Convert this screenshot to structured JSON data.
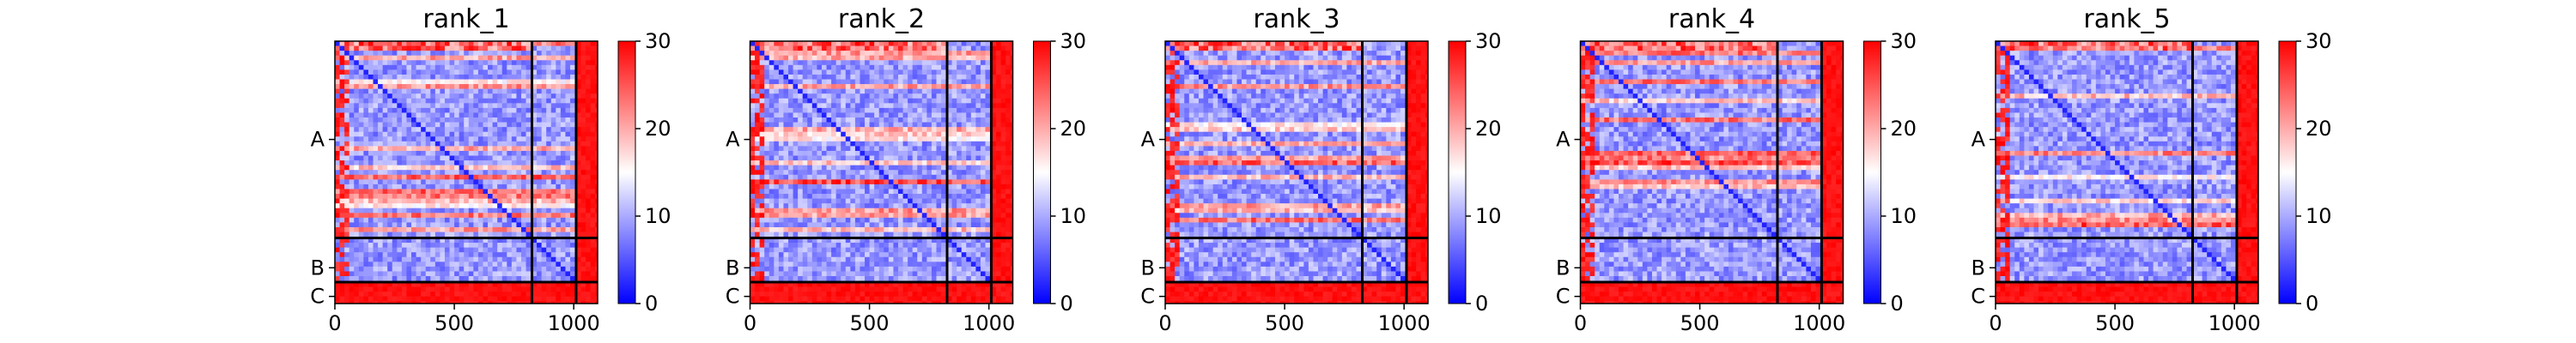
{
  "chart_data": {
    "type": "heatmap",
    "colormap": {
      "name": "bwr",
      "low": "#0000ff",
      "mid": "#ffffff",
      "high": "#ff0000"
    },
    "panels": [
      {
        "title": "rank_1"
      },
      {
        "title": "rank_2"
      },
      {
        "title": "rank_3"
      },
      {
        "title": "rank_4"
      },
      {
        "title": "rank_5"
      }
    ],
    "x_axis": {
      "range": [
        0,
        1100
      ],
      "ticks": [
        0,
        500,
        1000
      ],
      "tick_labels": [
        "0",
        "500",
        "1000"
      ]
    },
    "y_axis": {
      "tick_labels": [
        "A",
        "B",
        "C"
      ],
      "chain_centers": [
        412,
        950,
        1070
      ],
      "chain_boundaries": [
        825,
        1010
      ]
    },
    "colorbar": {
      "range": [
        0,
        30
      ],
      "ticks": [
        0,
        10,
        20,
        30
      ],
      "tick_labels": [
        "0",
        "10",
        "20",
        "30"
      ]
    },
    "matrix_size": 1100
  }
}
